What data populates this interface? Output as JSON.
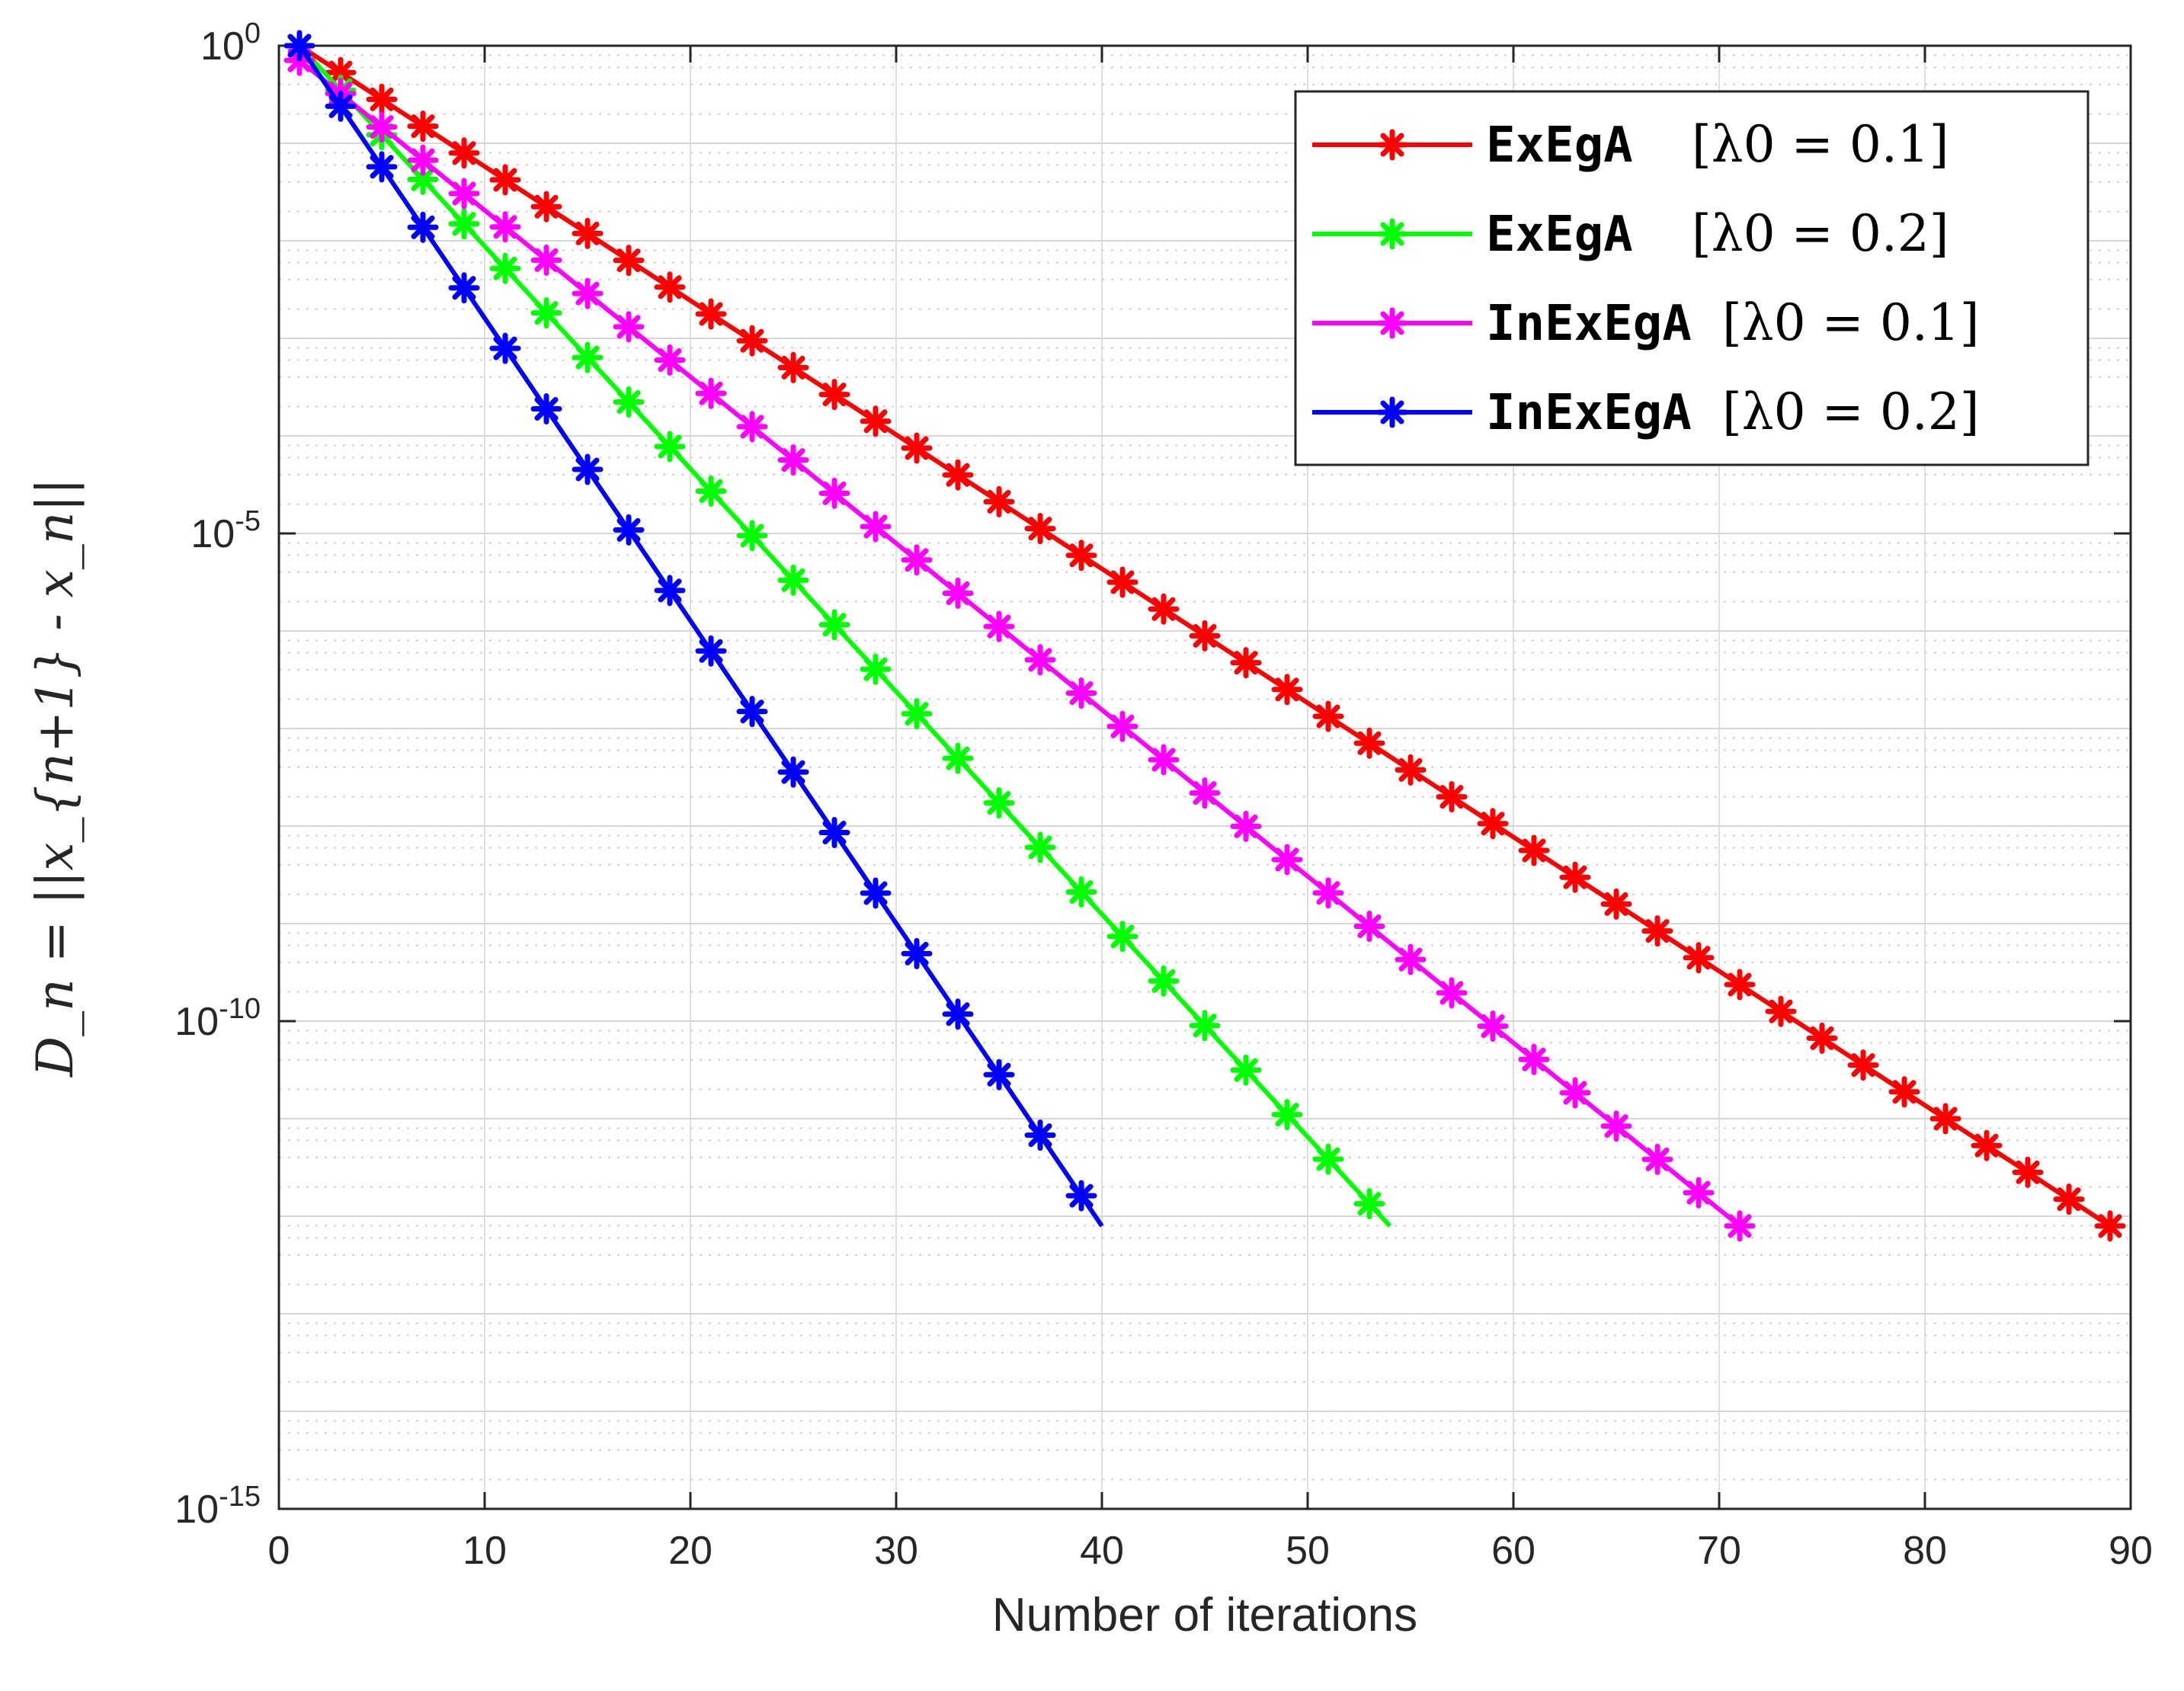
{
  "chart_data": {
    "type": "line",
    "yscale": "log",
    "xlabel": "Number of iterations",
    "ylabel": "D_n = ||x_{n+1} - x_n||",
    "xlim": [
      0,
      90
    ],
    "ylim_exponent": [
      -15,
      0
    ],
    "xticks": [
      0,
      10,
      20,
      30,
      40,
      50,
      60,
      70,
      80,
      90
    ],
    "yticks": [
      {
        "base": "10",
        "exp": "0"
      },
      {
        "base": "10",
        "exp": "-5"
      },
      {
        "base": "10",
        "exp": "-10"
      },
      {
        "base": "10",
        "exp": "-15"
      }
    ],
    "grid": true,
    "legend_position": "top-right",
    "series": [
      {
        "name": "ExEgA",
        "param": "[λ0 = 0.1]",
        "color": "#ff0000",
        "marker": "asterisk",
        "start_iter": 1,
        "end_iter": 89,
        "start_log10": 0.0,
        "end_log10": -12.1
      },
      {
        "name": "ExEgA",
        "param": "[λ0 = 0.2]",
        "color": "#00ff00",
        "marker": "asterisk",
        "start_iter": 1,
        "end_iter": 54,
        "start_log10": 0.0,
        "end_log10": -12.1
      },
      {
        "name": "InExEgA",
        "param": "[λ0 = 0.1]",
        "color": "#ff00ff",
        "marker": "asterisk",
        "start_iter": 1,
        "end_iter": 71,
        "start_log10": -0.15,
        "end_log10": -12.1
      },
      {
        "name": "InExEgA",
        "param": "[λ0 = 0.2]",
        "color": "#0000ff",
        "marker": "asterisk",
        "start_iter": 1,
        "end_iter": 40,
        "start_log10": 0.0,
        "end_log10": -12.1
      }
    ]
  }
}
